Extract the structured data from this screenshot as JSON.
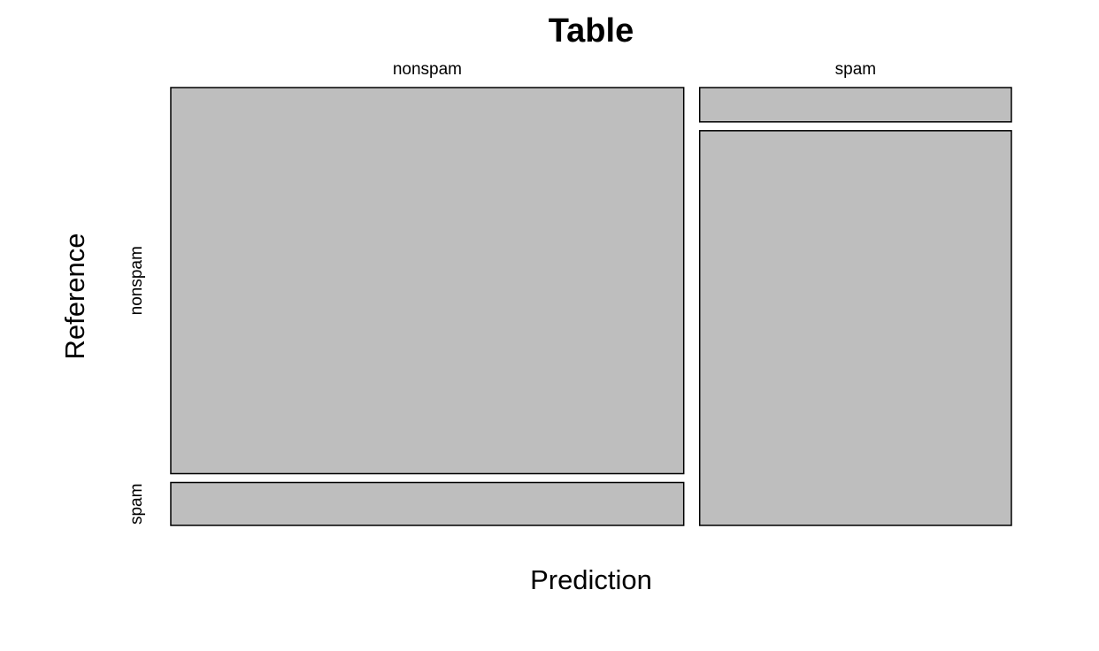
{
  "chart_data": {
    "type": "mosaic",
    "title": "Table",
    "xlabel": "Prediction",
    "ylabel": "Reference",
    "x_categories": [
      "nonspam",
      "spam"
    ],
    "y_categories": [
      "nonspam",
      "spam"
    ],
    "cells": [
      {
        "prediction": "nonspam",
        "reference": "nonspam",
        "proportion_of_column": 0.9
      },
      {
        "prediction": "nonspam",
        "reference": "spam",
        "proportion_of_column": 0.1
      },
      {
        "prediction": "spam",
        "reference": "nonspam",
        "proportion_of_column": 0.08
      },
      {
        "prediction": "spam",
        "reference": "spam",
        "proportion_of_column": 0.92
      }
    ],
    "column_proportions": {
      "nonspam": 0.622,
      "spam": 0.378
    },
    "fill_color": "#bebebe",
    "border_color": "#000000"
  }
}
